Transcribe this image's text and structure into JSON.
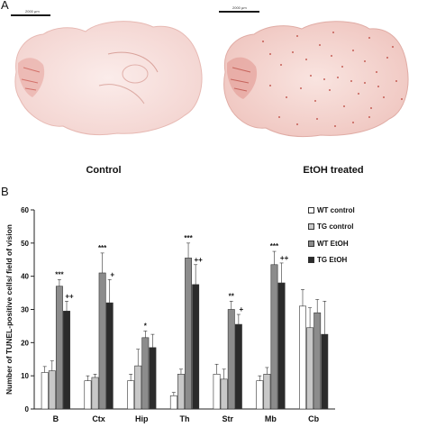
{
  "figure": {
    "panel_a_letter": "A",
    "panel_b_letter": "B",
    "panel_a": {
      "scale_left": "2000 μm",
      "scale_right": "2000 μm",
      "caption_left": "Control",
      "caption_right": "EtOH treated"
    }
  },
  "chart_data": {
    "type": "bar",
    "categories": [
      "B",
      "Ctx",
      "Hip",
      "Th",
      "Str",
      "Mb",
      "Cb"
    ],
    "ylabel": "Number of TUNEL-positive cells/ field of vision",
    "xlabel": "",
    "ylim": [
      0,
      60
    ],
    "yticks": [
      "0",
      "10",
      "20",
      "30",
      "40",
      "50",
      "60"
    ],
    "grid": false,
    "legend_position": "top-right",
    "series": [
      {
        "name": "WT control",
        "color": "#ffffff",
        "values": [
          11,
          8.5,
          8.5,
          4,
          10.5,
          8.5,
          31
        ],
        "errors": [
          1.8,
          1.5,
          2,
          1,
          3,
          1.5,
          5
        ]
      },
      {
        "name": "TG control",
        "color": "#c8c8c8",
        "values": [
          11.5,
          9.5,
          13,
          10.5,
          9,
          10.5,
          24.5
        ],
        "errors": [
          3,
          1,
          5,
          1.5,
          3,
          2,
          6
        ]
      },
      {
        "name": "WT EtOH",
        "color": "#8c8c8c",
        "values": [
          37,
          41,
          21.5,
          45.5,
          30,
          43.5,
          29
        ],
        "errors": [
          2,
          6,
          2,
          4.5,
          2.5,
          4,
          4
        ]
      },
      {
        "name": "TG EtOH",
        "color": "#2b2b2b",
        "values": [
          29.5,
          32,
          18.5,
          37.5,
          25.5,
          38,
          22.5
        ],
        "errors": [
          3,
          7,
          4,
          6,
          3,
          6,
          10
        ]
      }
    ],
    "annotations": [
      {
        "category": "B",
        "series": "WT EtOH",
        "text": "***"
      },
      {
        "category": "B",
        "series": "TG EtOH",
        "text": "++"
      },
      {
        "category": "Ctx",
        "series": "WT EtOH",
        "text": "***"
      },
      {
        "category": "Ctx",
        "series": "TG EtOH",
        "text": "+"
      },
      {
        "category": "Hip",
        "series": "WT EtOH",
        "text": "*"
      },
      {
        "category": "Th",
        "series": "WT EtOH",
        "text": "***"
      },
      {
        "category": "Th",
        "series": "TG EtOH",
        "text": "++"
      },
      {
        "category": "Str",
        "series": "WT EtOH",
        "text": "**"
      },
      {
        "category": "Str",
        "series": "TG EtOH",
        "text": "+"
      },
      {
        "category": "Mb",
        "series": "WT EtOH",
        "text": "***"
      },
      {
        "category": "Mb",
        "series": "TG EtOH",
        "text": "++"
      }
    ]
  }
}
